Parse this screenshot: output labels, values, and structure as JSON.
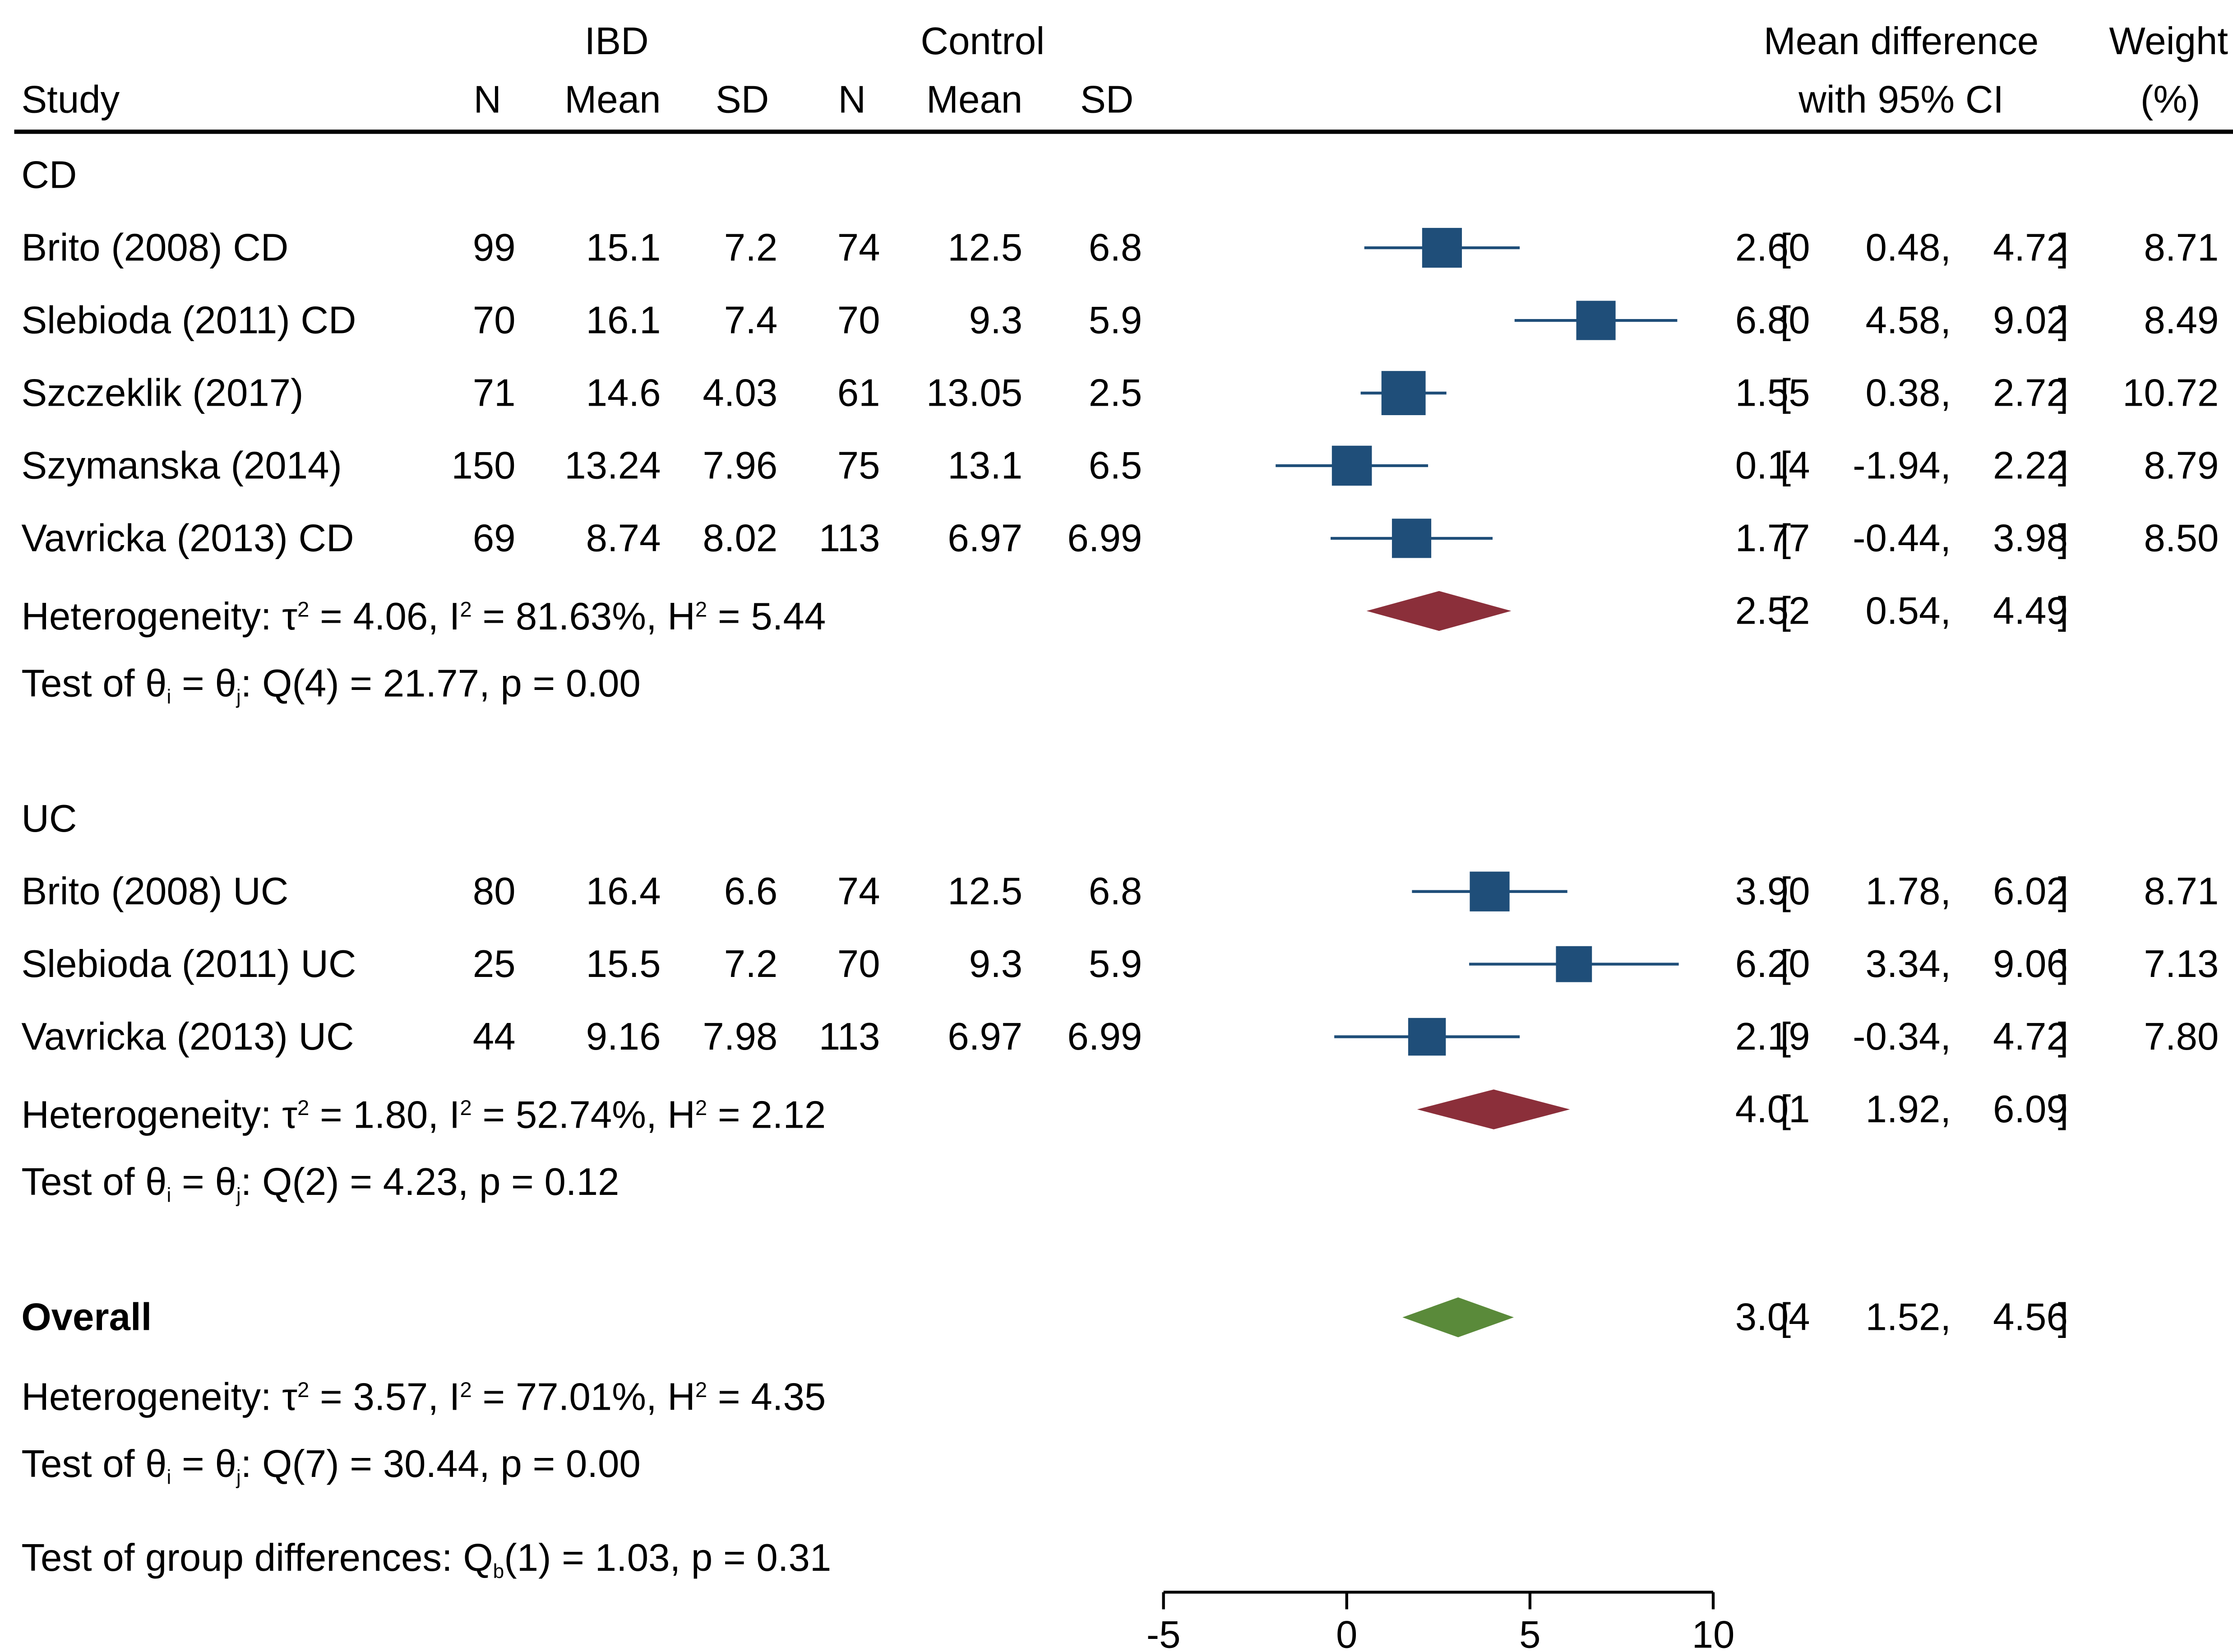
{
  "header": {
    "study": "Study",
    "ibd_group": "IBD",
    "control_group": "Control",
    "n": "N",
    "mean": "Mean",
    "sd": "SD",
    "md_line1": "Mean difference",
    "md_line2": "with 95% CI",
    "weight_line1": "Weight",
    "weight_line2": "(%)"
  },
  "groups": [
    {
      "label": "CD",
      "studies": [
        {
          "study": "Brito (2008) CD",
          "ibd_n": "99",
          "ibd_mean": "15.1",
          "ibd_sd": "7.2",
          "ctl_n": "74",
          "ctl_mean": "12.5",
          "ctl_sd": "6.8",
          "md": "2.60",
          "lo": "0.48",
          "hi": "4.72",
          "weight": "8.71"
        },
        {
          "study": "Slebioda (2011) CD",
          "ibd_n": "70",
          "ibd_mean": "16.1",
          "ibd_sd": "7.4",
          "ctl_n": "70",
          "ctl_mean": "9.3",
          "ctl_sd": "5.9",
          "md": "6.80",
          "lo": "4.58",
          "hi": "9.02",
          "weight": "8.49"
        },
        {
          "study": "Szczeklik (2017)",
          "ibd_n": "71",
          "ibd_mean": "14.6",
          "ibd_sd": "4.03",
          "ctl_n": "61",
          "ctl_mean": "13.05",
          "ctl_sd": "2.5",
          "md": "1.55",
          "lo": "0.38",
          "hi": "2.72",
          "weight": "10.72"
        },
        {
          "study": "Szymanska (2014)",
          "ibd_n": "150",
          "ibd_mean": "13.24",
          "ibd_sd": "7.96",
          "ctl_n": "75",
          "ctl_mean": "13.1",
          "ctl_sd": "6.5",
          "md": "0.14",
          "lo": "-1.94",
          "hi": "2.22",
          "weight": "8.79"
        },
        {
          "study": "Vavricka (2013) CD",
          "ibd_n": "69",
          "ibd_mean": "8.74",
          "ibd_sd": "8.02",
          "ctl_n": "113",
          "ctl_mean": "6.97",
          "ctl_sd": "6.99",
          "md": "1.77",
          "lo": "-0.44",
          "hi": "3.98",
          "weight": "8.50"
        }
      ],
      "pooled": {
        "md": "2.52",
        "lo": "0.54",
        "hi": "4.49"
      },
      "het_parts": {
        "tau2": "4.06",
        "i2": "81.63%",
        "h2": "5.44"
      },
      "q_parts": {
        "df": "4",
        "q": "21.77",
        "p": "0.00"
      }
    },
    {
      "label": "UC",
      "studies": [
        {
          "study": "Brito (2008) UC",
          "ibd_n": "80",
          "ibd_mean": "16.4",
          "ibd_sd": "6.6",
          "ctl_n": "74",
          "ctl_mean": "12.5",
          "ctl_sd": "6.8",
          "md": "3.90",
          "lo": "1.78",
          "hi": "6.02",
          "weight": "8.71"
        },
        {
          "study": "Slebioda (2011) UC",
          "ibd_n": "25",
          "ibd_mean": "15.5",
          "ibd_sd": "7.2",
          "ctl_n": "70",
          "ctl_mean": "9.3",
          "ctl_sd": "5.9",
          "md": "6.20",
          "lo": "3.34",
          "hi": "9.06",
          "weight": "7.13"
        },
        {
          "study": "Vavricka (2013) UC",
          "ibd_n": "44",
          "ibd_mean": "9.16",
          "ibd_sd": "7.98",
          "ctl_n": "113",
          "ctl_mean": "6.97",
          "ctl_sd": "6.99",
          "md": "2.19",
          "lo": "-0.34",
          "hi": "4.72",
          "weight": "7.80"
        }
      ],
      "pooled": {
        "md": "4.01",
        "lo": "1.92",
        "hi": "6.09"
      },
      "het_parts": {
        "tau2": "1.80",
        "i2": "52.74%",
        "h2": "2.12"
      },
      "q_parts": {
        "df": "2",
        "q": "4.23",
        "p": "0.12"
      }
    }
  ],
  "overall": {
    "label": "Overall",
    "md": "3.04",
    "lo": "1.52",
    "hi": "4.56",
    "het_parts": {
      "tau2": "3.57",
      "i2": "77.01%",
      "h2": "4.35"
    },
    "q_parts": {
      "df": "7",
      "q": "30.44",
      "p": "0.00"
    }
  },
  "group_diff": {
    "df": "1",
    "q": "1.03",
    "p": "0.31"
  },
  "chart_data": {
    "type": "forest",
    "xlim": [
      -5,
      10
    ],
    "x_ticks": [
      "-5",
      "0",
      "5",
      "10"
    ],
    "colors": {
      "study": "#1f4e79",
      "subgroup": "#8b2f3a",
      "overall": "#5a8a3a"
    }
  }
}
